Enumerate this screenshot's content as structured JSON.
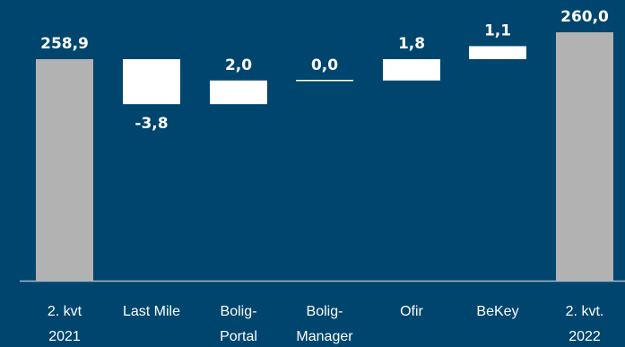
{
  "chart_data": {
    "type": "bar",
    "subtype": "waterfall",
    "categories": [
      [
        "2. kvt",
        "2021"
      ],
      [
        "Last Mile"
      ],
      [
        "Bolig-",
        "Portal"
      ],
      [
        "Bolig-",
        "Manager"
      ],
      [
        "Ofir"
      ],
      [
        "BeKey"
      ],
      [
        "2. kvt.",
        "2022"
      ]
    ],
    "values": [
      258.9,
      -3.8,
      2.0,
      0.0,
      1.8,
      1.1,
      260.0
    ],
    "labels": [
      "258,9",
      "-3,8",
      "2,0",
      "0,0",
      "1,8",
      "1,1",
      "260,0"
    ],
    "kinds": [
      "total",
      "delta",
      "delta",
      "delta",
      "delta",
      "delta",
      "total"
    ],
    "colors": {
      "background": "#00456e",
      "total_bar": "#b2b2b2",
      "delta_bar": "#ffffff",
      "text": "#ffffff",
      "axis": "#a9b8c6"
    },
    "title": "",
    "xlabel": "",
    "ylabel": "",
    "grid": false,
    "legend": "none"
  }
}
